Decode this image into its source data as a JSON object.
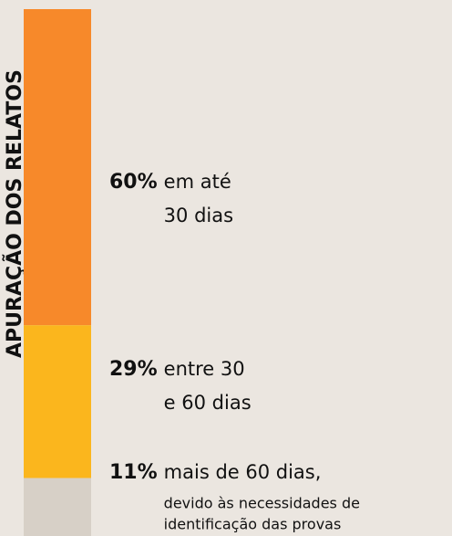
{
  "chart_data": {
    "type": "stacked-bar",
    "title": "APURAÇÃO DOS RELATOS",
    "values": [
      60,
      29,
      11
    ],
    "value_labels": [
      "60%",
      "29%",
      "11%"
    ],
    "labels": [
      [
        "em até",
        "30 dias"
      ],
      [
        "entre 30",
        "e 60 dias"
      ],
      [
        "mais de 60 dias,"
      ]
    ],
    "note": [
      "devido às necessidades de",
      "identificação das provas"
    ],
    "colors": [
      "#f7892a",
      "#fbb61d",
      "#d7d0c7"
    ]
  }
}
